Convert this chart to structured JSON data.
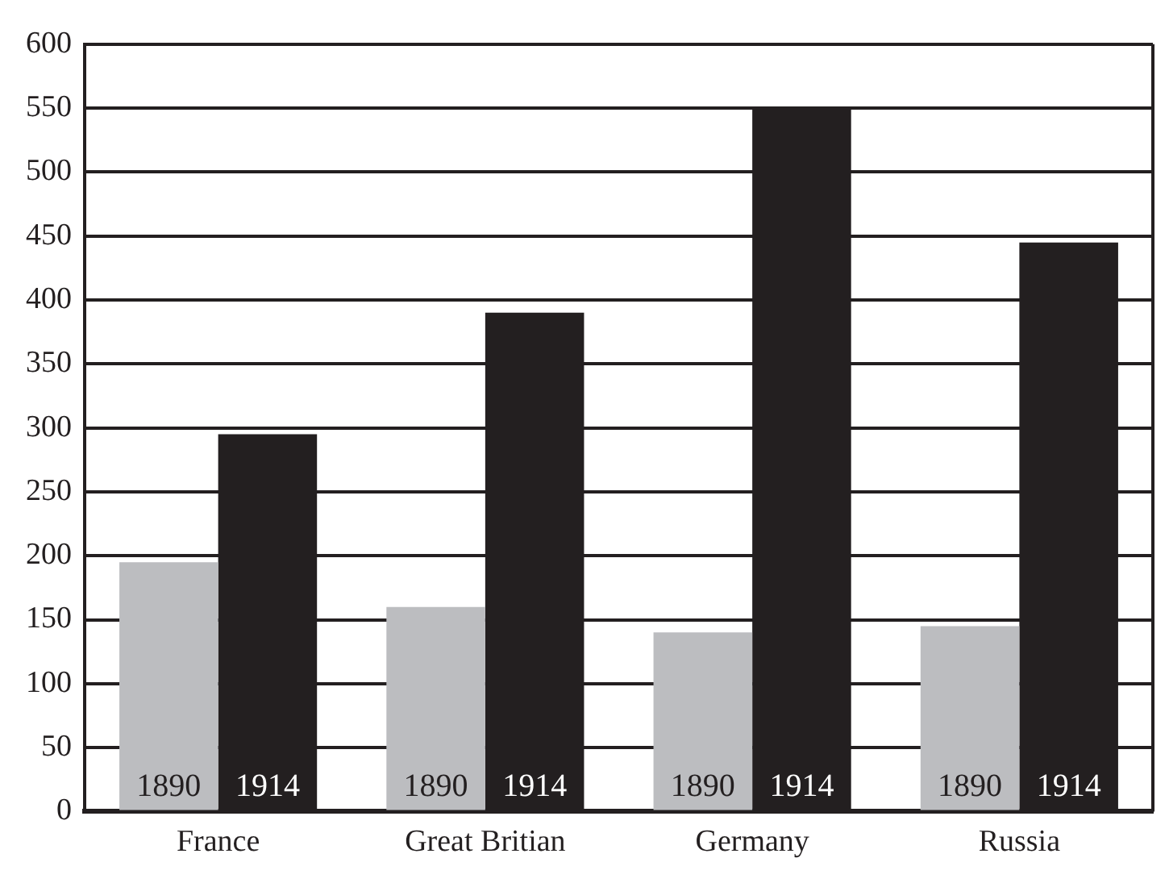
{
  "chart_data": {
    "type": "bar",
    "categories": [
      "France",
      "Great Britian",
      "Germany",
      "Russia"
    ],
    "series": [
      {
        "name": "1890",
        "color": "#bcbdc0",
        "values": [
          195,
          160,
          140,
          145
        ]
      },
      {
        "name": "1914",
        "color": "#231f20",
        "values": [
          295,
          390,
          550,
          445
        ]
      }
    ],
    "ylim": [
      0,
      600
    ],
    "yticks": [
      0,
      50,
      100,
      150,
      200,
      250,
      300,
      350,
      400,
      450,
      500,
      550,
      600
    ],
    "grid": "y",
    "legend": false
  }
}
